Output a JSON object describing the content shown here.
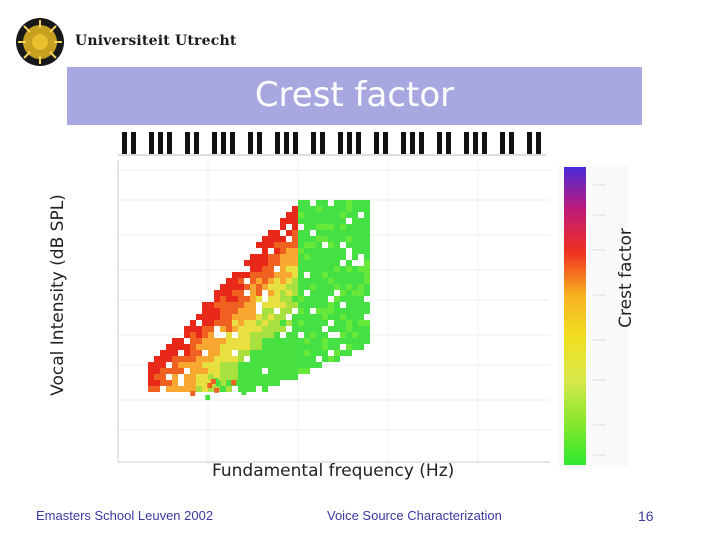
{
  "header": {
    "institution": "Universiteit Utrecht",
    "logo_icon": "sun-seal-icon"
  },
  "slide": {
    "title": "Crest factor",
    "title_bar_color": "#a8a8e0"
  },
  "chart": {
    "type": "heatmap",
    "y_axis_label": "Vocal Intensity (dB SPL)",
    "x_axis_label": "Fundamental frequency (Hz)",
    "colorbar_label": "Crest factor",
    "colorbar_colors": [
      "#2ee82e",
      "#88e82e",
      "#d8e84a",
      "#f0e020",
      "#f8b020",
      "#f03020",
      "#c01a78",
      "#4a2ad8"
    ],
    "keyboard_icon": "piano-keyboard-icon"
  },
  "footer": {
    "left": "Emasters School Leuven 2002",
    "center": "Voice Source Characterization",
    "page_number": "16"
  }
}
